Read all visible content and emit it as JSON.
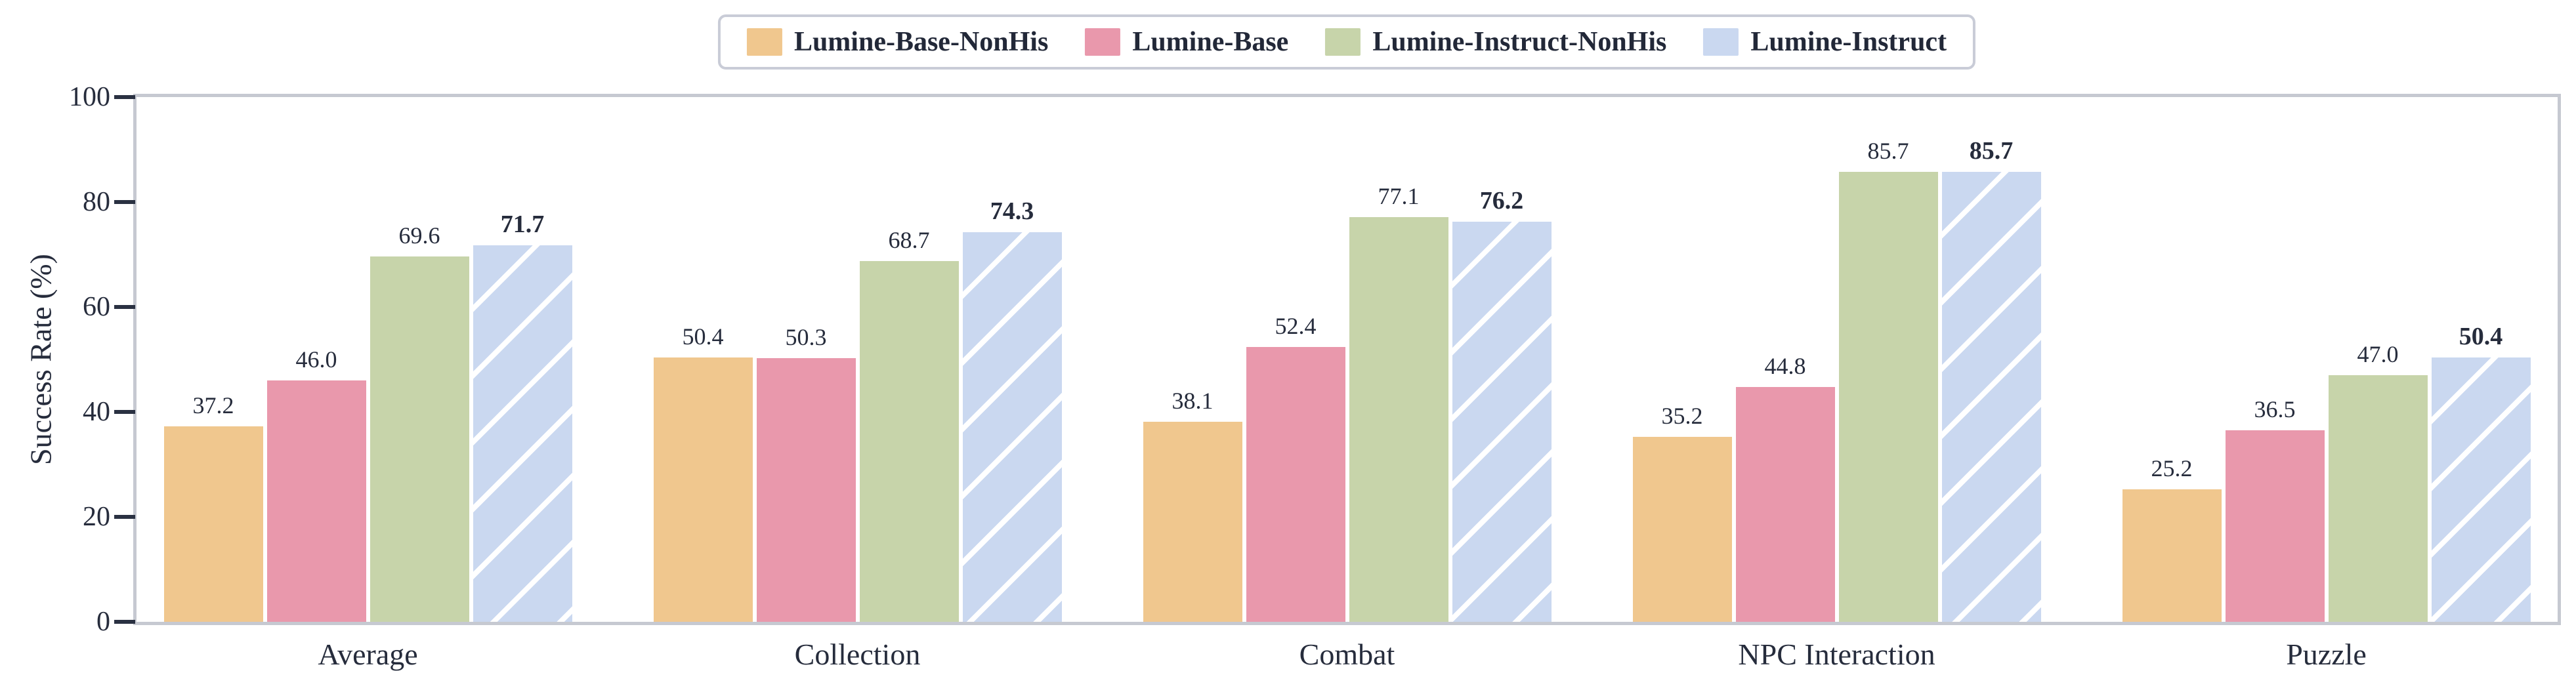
{
  "chart_data": {
    "type": "bar",
    "title": "",
    "xlabel": "",
    "ylabel": "Success Rate (%)",
    "ylim": [
      0,
      100
    ],
    "yticks": [
      "0",
      "20",
      "40",
      "60",
      "80",
      "100"
    ],
    "grid": false,
    "legend_position": "top-center",
    "categories": [
      "Average",
      "Collection",
      "Combat",
      "NPC Interaction",
      "Puzzle"
    ],
    "series": [
      {
        "name": "Lumine-Base-NonHis",
        "color": "#f0c78e",
        "hatch": "none",
        "values": [
          37.2,
          50.4,
          38.1,
          35.2,
          25.2
        ],
        "labels": [
          "37.2",
          "50.4",
          "38.1",
          "35.2",
          "25.2"
        ],
        "label_style": "normal"
      },
      {
        "name": "Lumine-Base",
        "color": "#e998ac",
        "hatch": "none",
        "values": [
          46.0,
          50.3,
          52.4,
          44.8,
          36.5
        ],
        "labels": [
          "46.0",
          "50.3",
          "52.4",
          "44.8",
          "36.5"
        ],
        "label_style": "normal"
      },
      {
        "name": "Lumine-Instruct-NonHis",
        "color": "#c7d4aa",
        "hatch": "none",
        "values": [
          69.6,
          68.7,
          77.1,
          85.7,
          47.0
        ],
        "labels": [
          "69.6",
          "68.7",
          "77.1",
          "85.7",
          "47.0"
        ],
        "label_style": "normal"
      },
      {
        "name": "Lumine-Instruct",
        "color": "#cad8f0",
        "hatch": "diagonal-white",
        "values": [
          71.7,
          74.3,
          76.2,
          85.7,
          50.4
        ],
        "labels": [
          "71.7",
          "74.3",
          "76.2",
          "85.7",
          "50.4"
        ],
        "label_style": "bold"
      }
    ],
    "colors": {
      "text": "#262c3c",
      "spine": "#c6c9d1",
      "tick_mark": "#2a3142",
      "background": "#ffffff"
    }
  }
}
